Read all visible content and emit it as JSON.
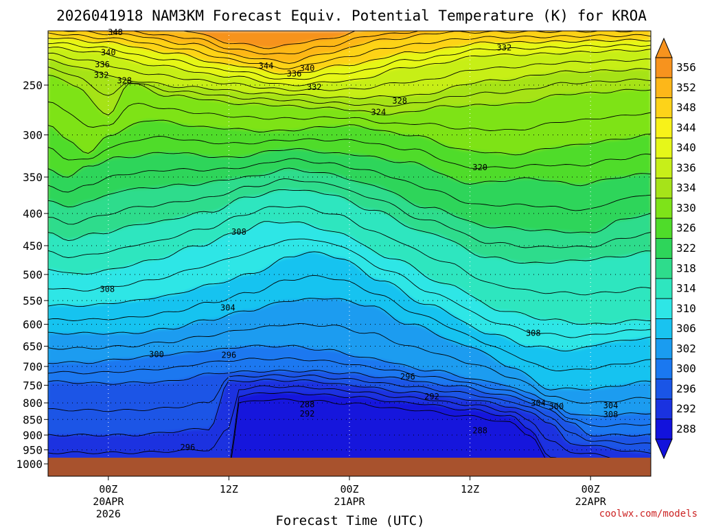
{
  "chart_data": {
    "type": "heatmap",
    "title": "2026041918 NAM3KM Forecast Equiv. Potential Temperature (K) for KROA",
    "xlabel": "Forecast Time (UTC)",
    "ylabel": "",
    "y_ticks": [
      "250",
      "300",
      "350",
      "400",
      "450",
      "500",
      "550",
      "600",
      "650",
      "700",
      "750",
      "800",
      "850",
      "900",
      "950",
      "1000"
    ],
    "x_ticks": [
      {
        "label": "00Z",
        "sub": [
          "20APR",
          "2026"
        ],
        "hour": 6
      },
      {
        "label": "12Z",
        "sub": [],
        "hour": 18
      },
      {
        "label": "00Z",
        "sub": [
          "21APR"
        ],
        "hour": 30
      },
      {
        "label": "12Z",
        "sub": [],
        "hour": 42
      },
      {
        "label": "00Z",
        "sub": [
          "22APR"
        ],
        "hour": 54
      }
    ],
    "x_range_hours": [
      0,
      60
    ],
    "y_range_hpa": [
      200,
      1020
    ],
    "ground_hpa": 975,
    "colorbar": {
      "labels": [
        "356",
        "352",
        "348",
        "344",
        "340",
        "336",
        "334",
        "330",
        "326",
        "322",
        "318",
        "314",
        "310",
        "306",
        "302",
        "300",
        "296",
        "292",
        "288"
      ],
      "colors": [
        "#f7931e",
        "#fdb719",
        "#fdd319",
        "#f8f219",
        "#e6f719",
        "#c7ef19",
        "#a6e319",
        "#7ee319",
        "#4fdc2a",
        "#2ed55a",
        "#2edc8c",
        "#2ee6bf",
        "#2ee6e6",
        "#19c3f0",
        "#1a9cf0",
        "#1a78f0",
        "#1a55e6",
        "#1a32e0",
        "#1212dc"
      ],
      "ground_color": "#a8522d"
    },
    "contour_labels": [
      {
        "text": "348",
        "hour": 6.7,
        "hpa": 206
      },
      {
        "text": "340",
        "hour": 6.0,
        "hpa": 222
      },
      {
        "text": "336",
        "hour": 5.4,
        "hpa": 232
      },
      {
        "text": "332",
        "hour": 5.3,
        "hpa": 241
      },
      {
        "text": "328",
        "hour": 7.6,
        "hpa": 246
      },
      {
        "text": "344",
        "hour": 21.7,
        "hpa": 233
      },
      {
        "text": "340",
        "hour": 25.8,
        "hpa": 235
      },
      {
        "text": "336",
        "hour": 24.5,
        "hpa": 240
      },
      {
        "text": "332",
        "hour": 26.5,
        "hpa": 252
      },
      {
        "text": "328",
        "hour": 35.0,
        "hpa": 265
      },
      {
        "text": "324",
        "hour": 32.9,
        "hpa": 276
      },
      {
        "text": "332",
        "hour": 45.4,
        "hpa": 218
      },
      {
        "text": "320",
        "hour": 43.0,
        "hpa": 338
      },
      {
        "text": "308",
        "hour": 19.0,
        "hpa": 428
      },
      {
        "text": "308",
        "hour": 5.9,
        "hpa": 528
      },
      {
        "text": "304",
        "hour": 17.9,
        "hpa": 565
      },
      {
        "text": "300",
        "hour": 10.8,
        "hpa": 670
      },
      {
        "text": "296",
        "hour": 18.0,
        "hpa": 672
      },
      {
        "text": "296",
        "hour": 35.8,
        "hpa": 727
      },
      {
        "text": "292",
        "hour": 38.2,
        "hpa": 782
      },
      {
        "text": "288",
        "hour": 25.8,
        "hpa": 805
      },
      {
        "text": "292",
        "hour": 25.8,
        "hpa": 832
      },
      {
        "text": "288",
        "hour": 43.0,
        "hpa": 885
      },
      {
        "text": "304",
        "hour": 48.8,
        "hpa": 801
      },
      {
        "text": "300",
        "hour": 50.6,
        "hpa": 811
      },
      {
        "text": "308",
        "hour": 48.3,
        "hpa": 620
      },
      {
        "text": "304",
        "hour": 56.0,
        "hpa": 808
      },
      {
        "text": "308",
        "hour": 56.0,
        "hpa": 835
      },
      {
        "text": "296",
        "hour": 13.9,
        "hpa": 942
      }
    ]
  },
  "credit": "coolwx.com/models"
}
